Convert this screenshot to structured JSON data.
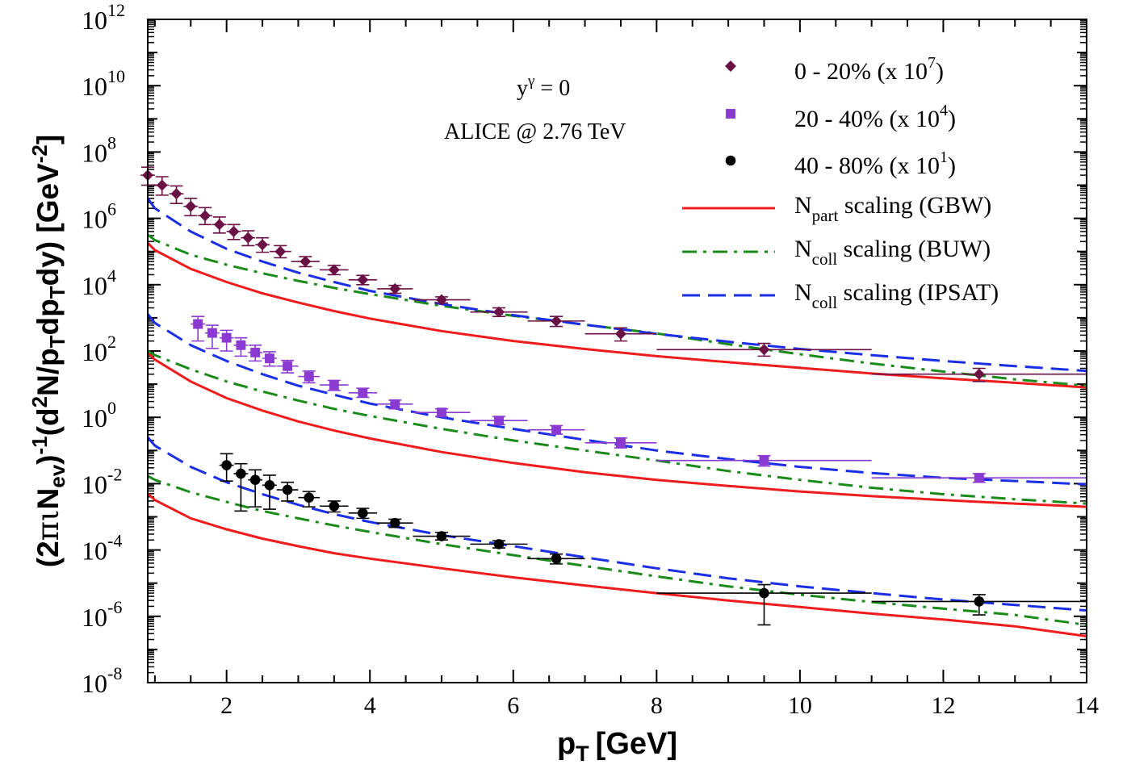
{
  "chart_data": {
    "type": "scatter",
    "xlabel": "p",
    "xlabel_sub": "T",
    "xlabel_unit": "[GeV]",
    "ylabel": {
      "p1": "(2",
      "pi": "π",
      "iota": "ι",
      "N": "N",
      "ev": "ev",
      "p2": ")",
      "inv": "-1",
      "p3": "(d",
      "sq": "2",
      "p4": "N/p",
      "T1": "T",
      "p5": "dp",
      "T2": "T",
      "p6": "dy) [GeV",
      "m2": "-2",
      "p7": "]"
    },
    "xlim": [
      0.9,
      14
    ],
    "ylim": [
      1e-08,
      1000000000000.0
    ],
    "y_scale": "log",
    "x_ticks": [
      "2",
      "4",
      "6",
      "8",
      "10",
      "12",
      "14"
    ],
    "y_ticks": [
      {
        "base": "10",
        "exp": "-8"
      },
      {
        "base": "10",
        "exp": "-6"
      },
      {
        "base": "10",
        "exp": "-4"
      },
      {
        "base": "10",
        "exp": "-2"
      },
      {
        "base": "10",
        "exp": "0"
      },
      {
        "base": "10",
        "exp": "2"
      },
      {
        "base": "10",
        "exp": "4"
      },
      {
        "base": "10",
        "exp": "6"
      },
      {
        "base": "10",
        "exp": "8"
      },
      {
        "base": "10",
        "exp": "10"
      },
      {
        "base": "10",
        "exp": "12"
      }
    ],
    "annotations": {
      "rapidity_base": "y",
      "rapidity_sup": "γ",
      "rapidity_rest": " = 0",
      "experiment": "ALICE @ 2.76 TeV"
    },
    "legend_position": "top-right",
    "legend": [
      {
        "kind": "marker",
        "marker": "diamond",
        "color": "#6a1045",
        "label": "0 - 20% (x 10",
        "sup": "7",
        "suffix": ")"
      },
      {
        "kind": "marker",
        "marker": "square",
        "color": "#8a3ad0",
        "label": "20 - 40% (x 10",
        "sup": "4",
        "suffix": ")"
      },
      {
        "kind": "marker",
        "marker": "circle",
        "color": "#000000",
        "label": "40 - 80% (x 10",
        "sup": "1",
        "suffix": ")"
      },
      {
        "kind": "line",
        "dash": "solid",
        "color": "#ee1c1c",
        "main": "N",
        "sub": "part",
        "rest": " scaling (GBW)"
      },
      {
        "kind": "line",
        "dash": "dashdot",
        "color": "#1a8a1a",
        "main": "N",
        "sub": "coll",
        "rest": " scaling (BUW)"
      },
      {
        "kind": "line",
        "dash": "dash",
        "color": "#1a2ee6",
        "main": "N",
        "sub": "coll",
        "rest": " scaling (IPSAT)"
      }
    ],
    "series": [
      {
        "name": "0 - 20% (x 10^7)",
        "marker": "diamond",
        "color": "#6a1045",
        "points": [
          {
            "x": 0.9,
            "y": 20000000.0,
            "xerr": 0.1,
            "ylo": 10000000.0,
            "yhi": 35000000.0
          },
          {
            "x": 1.1,
            "y": 10000000.0,
            "xerr": 0.1,
            "ylo": 5000000.0,
            "yhi": 18000000.0
          },
          {
            "x": 1.3,
            "y": 5500000.0,
            "xerr": 0.1,
            "ylo": 2800000.0,
            "yhi": 9500000.0
          },
          {
            "x": 1.5,
            "y": 2300000.0,
            "xerr": 0.1,
            "ylo": 1200000.0,
            "yhi": 4000000.0
          },
          {
            "x": 1.7,
            "y": 1200000.0,
            "xerr": 0.1,
            "ylo": 650000.0,
            "yhi": 2100000.0
          },
          {
            "x": 1.9,
            "y": 650000.0,
            "xerr": 0.1,
            "ylo": 360000.0,
            "yhi": 1100000.0
          },
          {
            "x": 2.1,
            "y": 400000.0,
            "xerr": 0.1,
            "ylo": 230000.0,
            "yhi": 650000.0
          },
          {
            "x": 2.3,
            "y": 260000.0,
            "xerr": 0.1,
            "ylo": 150000.0,
            "yhi": 420000.0
          },
          {
            "x": 2.5,
            "y": 160000.0,
            "xerr": 0.1,
            "ylo": 95000.0,
            "yhi": 260000.0
          },
          {
            "x": 2.75,
            "y": 100000.0,
            "xerr": 0.15,
            "ylo": 65000.0,
            "yhi": 150000.0
          },
          {
            "x": 3.1,
            "y": 50000.0,
            "xerr": 0.2,
            "ylo": 35000.0,
            "yhi": 70000.0
          },
          {
            "x": 3.5,
            "y": 28000.0,
            "xerr": 0.2,
            "ylo": 20000.0,
            "yhi": 38000.0
          },
          {
            "x": 3.9,
            "y": 14000.0,
            "xerr": 0.2,
            "ylo": 10000.0,
            "yhi": 19000.0
          },
          {
            "x": 4.35,
            "y": 7500.0,
            "xerr": 0.25,
            "ylo": 5500.0,
            "yhi": 9500.0
          },
          {
            "x": 5.0,
            "y": 3500.0,
            "xerr": 0.4,
            "ylo": 2800.0,
            "yhi": 4300.0
          },
          {
            "x": 5.8,
            "y": 1500.0,
            "xerr": 0.4,
            "ylo": 1100.0,
            "yhi": 2000.0
          },
          {
            "x": 6.6,
            "y": 800,
            "xerr": 0.4,
            "ylo": 550,
            "yhi": 1100
          },
          {
            "x": 7.5,
            "y": 330,
            "xerr": 0.5,
            "ylo": 200,
            "yhi": 500
          },
          {
            "x": 9.5,
            "y": 110,
            "xerr": 1.5,
            "ylo": 70,
            "yhi": 170
          },
          {
            "x": 12.5,
            "y": 20,
            "xerr": 1.5,
            "ylo": 12,
            "yhi": 30
          }
        ]
      },
      {
        "name": "20 - 40% (x 10^4)",
        "marker": "square",
        "color": "#8a3ad0",
        "points": [
          {
            "x": 1.6,
            "y": 650,
            "xerr": 0.1,
            "ylo": 200,
            "yhi": 1100
          },
          {
            "x": 1.8,
            "y": 350,
            "xerr": 0.1,
            "ylo": 120,
            "yhi": 600
          },
          {
            "x": 2.0,
            "y": 250,
            "xerr": 0.1,
            "ylo": 100,
            "yhi": 420
          },
          {
            "x": 2.2,
            "y": 150,
            "xerr": 0.1,
            "ylo": 70,
            "yhi": 250
          },
          {
            "x": 2.4,
            "y": 90,
            "xerr": 0.1,
            "ylo": 50,
            "yhi": 150
          },
          {
            "x": 2.6,
            "y": 60,
            "xerr": 0.1,
            "ylo": 35,
            "yhi": 95
          },
          {
            "x": 2.85,
            "y": 35,
            "xerr": 0.15,
            "ylo": 22,
            "yhi": 52
          },
          {
            "x": 3.15,
            "y": 17,
            "xerr": 0.15,
            "ylo": 11,
            "yhi": 25
          },
          {
            "x": 3.5,
            "y": 9.5,
            "xerr": 0.2,
            "ylo": 6.5,
            "yhi": 13
          },
          {
            "x": 3.9,
            "y": 5.5,
            "xerr": 0.2,
            "ylo": 4,
            "yhi": 7.5
          },
          {
            "x": 4.35,
            "y": 2.5,
            "xerr": 0.25,
            "ylo": 1.8,
            "yhi": 3.3
          },
          {
            "x": 5.0,
            "y": 1.4,
            "xerr": 0.4,
            "ylo": 1.05,
            "yhi": 1.8
          },
          {
            "x": 5.8,
            "y": 0.8,
            "xerr": 0.4,
            "ylo": 0.6,
            "yhi": 1.05
          },
          {
            "x": 6.6,
            "y": 0.42,
            "xerr": 0.4,
            "ylo": 0.31,
            "yhi": 0.56
          },
          {
            "x": 7.5,
            "y": 0.17,
            "xerr": 0.5,
            "ylo": 0.12,
            "yhi": 0.24
          },
          {
            "x": 9.5,
            "y": 0.05,
            "xerr": 1.5,
            "ylo": 0.034,
            "yhi": 0.07
          },
          {
            "x": 12.5,
            "y": 0.015,
            "xerr": 1.5,
            "ylo": 0.011,
            "yhi": 0.02
          }
        ]
      },
      {
        "name": "40 - 80% (x 10^1)",
        "marker": "circle",
        "color": "#000000",
        "points": [
          {
            "x": 2.0,
            "y": 0.036,
            "xerr": 0.1,
            "ylo": 0.012,
            "yhi": 0.08
          },
          {
            "x": 2.2,
            "y": 0.02,
            "xerr": 0.1,
            "ylo": 0.0015,
            "yhi": 0.04
          },
          {
            "x": 2.4,
            "y": 0.013,
            "xerr": 0.1,
            "ylo": 0.002,
            "yhi": 0.026
          },
          {
            "x": 2.6,
            "y": 0.009,
            "xerr": 0.1,
            "ylo": 0.0017,
            "yhi": 0.018
          },
          {
            "x": 2.85,
            "y": 0.0065,
            "xerr": 0.15,
            "ylo": 0.003,
            "yhi": 0.011
          },
          {
            "x": 3.15,
            "y": 0.0038,
            "xerr": 0.15,
            "ylo": 0.002,
            "yhi": 0.0058
          },
          {
            "x": 3.5,
            "y": 0.0021,
            "xerr": 0.2,
            "ylo": 0.0014,
            "yhi": 0.003
          },
          {
            "x": 3.9,
            "y": 0.0013,
            "xerr": 0.2,
            "ylo": 0.0009,
            "yhi": 0.0018
          },
          {
            "x": 4.35,
            "y": 0.00065,
            "xerr": 0.25,
            "ylo": 0.00048,
            "yhi": 0.00085
          },
          {
            "x": 5.0,
            "y": 0.00026,
            "xerr": 0.4,
            "ylo": 0.0002,
            "yhi": 0.00034
          },
          {
            "x": 5.8,
            "y": 0.00015,
            "xerr": 0.4,
            "ylo": 0.000115,
            "yhi": 0.00019
          },
          {
            "x": 6.6,
            "y": 5.5e-05,
            "xerr": 0.4,
            "ylo": 3.8e-05,
            "yhi": 7.5e-05
          },
          {
            "x": 9.5,
            "y": 5e-06,
            "xerr": 1.5,
            "ylo": 5.5e-07,
            "yhi": 9e-06
          },
          {
            "x": 12.5,
            "y": 2.8e-06,
            "xerr": 1.5,
            "ylo": 1.1e-06,
            "yhi": 4.5e-06
          }
        ]
      }
    ],
    "curves": [
      {
        "name": "0-20% N_part (GBW)",
        "style": "solid",
        "color": "#ee1c1c",
        "x": [
          0.9,
          1,
          1.5,
          2,
          2.5,
          3,
          3.5,
          4,
          5,
          6,
          7,
          8,
          9,
          10,
          11,
          12,
          13,
          14
        ],
        "y": [
          180000.0,
          110000.0,
          30000.0,
          12000.0,
          5500.0,
          2900.0,
          1600.0,
          950,
          400,
          200,
          115,
          70,
          46,
          31,
          21,
          15,
          11,
          8.0
        ]
      },
      {
        "name": "0-20% N_coll (BUW)",
        "style": "dashdot",
        "color": "#1a8a1a",
        "x": [
          0.9,
          1,
          1.5,
          2,
          2.5,
          3,
          3.5,
          4,
          5,
          6,
          7,
          8,
          9,
          10,
          11,
          12,
          13,
          14
        ],
        "y": [
          320000.0,
          220000.0,
          80000.0,
          40000.0,
          22000.0,
          13000.0,
          8000.0,
          5200.0,
          2300.0,
          1150.0,
          620,
          340,
          160,
          80,
          42,
          24,
          14,
          9.0
        ]
      },
      {
        "name": "0-20% N_coll (IPSAT)",
        "style": "dash",
        "color": "#1a2ee6",
        "x": [
          0.9,
          1,
          1.5,
          2,
          2.5,
          3,
          3.5,
          4,
          5,
          6,
          7,
          8,
          9,
          10,
          11,
          12,
          13,
          14
        ],
        "y": [
          4000000.0,
          2000000.0,
          400000.0,
          120000.0,
          50000.0,
          23000.0,
          12000.0,
          6500.0,
          2600.0,
          1200.0,
          620,
          330,
          190,
          115,
          75,
          50,
          35,
          25
        ]
      },
      {
        "name": "20-40% N_part (GBW)",
        "style": "solid",
        "color": "#ee1c1c",
        "x": [
          0.9,
          1,
          1.5,
          2,
          2.5,
          3,
          3.5,
          4,
          5,
          6,
          7,
          8,
          9,
          10,
          11,
          12,
          13,
          14
        ],
        "y": [
          90,
          55,
          12,
          3.8,
          1.6,
          0.75,
          0.4,
          0.23,
          0.09,
          0.042,
          0.022,
          0.013,
          0.0085,
          0.0058,
          0.0042,
          0.0032,
          0.0025,
          0.002
        ]
      },
      {
        "name": "20-40% N_coll (BUW)",
        "style": "dashdot",
        "color": "#1a8a1a",
        "x": [
          0.9,
          1,
          1.5,
          2,
          2.5,
          3,
          3.5,
          4,
          5,
          6,
          7,
          8,
          9,
          10,
          11,
          12,
          13,
          14
        ],
        "y": [
          100,
          75,
          28,
          12,
          6,
          3.2,
          1.8,
          1.1,
          0.45,
          0.2,
          0.1,
          0.05,
          0.024,
          0.013,
          0.0075,
          0.0048,
          0.0034,
          0.0025
        ]
      },
      {
        "name": "20-40% N_coll (IPSAT)",
        "style": "dash",
        "color": "#1a2ee6",
        "x": [
          0.9,
          1,
          1.5,
          2,
          2.5,
          3,
          3.5,
          4,
          5,
          6,
          7,
          8,
          9,
          10,
          11,
          12,
          13,
          14
        ],
        "y": [
          1300,
          700,
          150,
          50,
          20,
          9,
          4.8,
          2.6,
          1.0,
          0.45,
          0.21,
          0.1,
          0.055,
          0.032,
          0.021,
          0.015,
          0.012,
          0.0095
        ]
      },
      {
        "name": "40-80% N_part (GBW)",
        "style": "solid",
        "color": "#ee1c1c",
        "x": [
          0.9,
          1,
          1.5,
          2,
          2.5,
          3,
          3.5,
          4,
          5,
          6,
          7,
          8,
          9,
          10,
          11,
          12,
          13,
          14
        ],
        "y": [
          0.005,
          0.0032,
          0.0009,
          0.00042,
          0.00022,
          0.00013,
          8e-05,
          5.5e-05,
          2.8e-05,
          1.5e-05,
          8.5e-06,
          5e-06,
          3e-06,
          1.9e-06,
          1.2e-06,
          8e-07,
          5e-07,
          2.5e-07
        ]
      },
      {
        "name": "40-80% N_coll (BUW)",
        "style": "dashdot",
        "color": "#1a8a1a",
        "x": [
          0.9,
          1,
          1.5,
          2,
          2.5,
          3,
          3.5,
          4,
          5,
          6,
          7,
          8,
          9,
          10,
          11,
          12,
          13,
          14
        ],
        "y": [
          0.017,
          0.013,
          0.0055,
          0.0028,
          0.0015,
          0.0009,
          0.00055,
          0.00035,
          0.00015,
          7e-05,
          3.3e-05,
          1.6e-05,
          8e-06,
          4.5e-06,
          2.7e-06,
          1.7e-06,
          1.1e-06,
          5.5e-07
        ]
      },
      {
        "name": "40-80% N_coll (IPSAT)",
        "style": "dash",
        "color": "#1a2ee6",
        "x": [
          0.9,
          1,
          1.5,
          2,
          2.5,
          3,
          3.5,
          4,
          5,
          6,
          7,
          8,
          9,
          10,
          11,
          12,
          13,
          14
        ],
        "y": [
          0.25,
          0.14,
          0.032,
          0.011,
          0.0048,
          0.0023,
          0.0012,
          0.0007,
          0.00028,
          0.00013,
          6e-05,
          2.8e-05,
          1.4e-05,
          8e-06,
          5e-06,
          3.2e-06,
          2.2e-06,
          1.5e-06
        ]
      }
    ]
  }
}
